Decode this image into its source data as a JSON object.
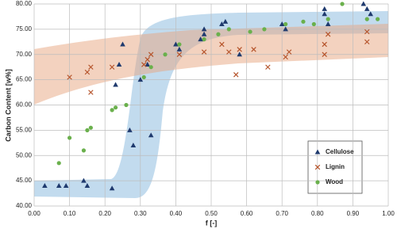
{
  "chart_data": {
    "type": "scatter",
    "x_label": "f [-]",
    "y_label": "Carbon Content [w%]",
    "xlim": [
      0,
      1
    ],
    "ylim": [
      40,
      80
    ],
    "xticks": [
      {
        "value": 0,
        "label": "0.00"
      },
      {
        "value": 0.1,
        "label": "0.10"
      },
      {
        "value": 0.2,
        "label": "0.20"
      },
      {
        "value": 0.3,
        "label": "0.30"
      },
      {
        "value": 0.4,
        "label": "0.40"
      },
      {
        "value": 0.5,
        "label": "0.50"
      },
      {
        "value": 0.6,
        "label": "0.60"
      },
      {
        "value": 0.7,
        "label": "0.70"
      },
      {
        "value": 0.8,
        "label": "0.80"
      },
      {
        "value": 0.9,
        "label": "0.90"
      },
      {
        "value": 1,
        "label": "1.00"
      }
    ],
    "yticks": [
      {
        "value": 40,
        "label": "40.00"
      },
      {
        "value": 45,
        "label": "45.00"
      },
      {
        "value": 50,
        "label": "50.00"
      },
      {
        "value": 55,
        "label": "55.00"
      },
      {
        "value": 60,
        "label": "60.00"
      },
      {
        "value": 65,
        "label": "65.00"
      },
      {
        "value": 70,
        "label": "70.00"
      },
      {
        "value": 75,
        "label": "75.00"
      },
      {
        "value": 80,
        "label": "80.00"
      }
    ],
    "grid": true,
    "legend": "lower right",
    "series": [
      {
        "name": "Cellulose",
        "color": "#1f3a6e",
        "marker": "triangle",
        "x": [
          0.03,
          0.07,
          0.09,
          0.14,
          0.15,
          0.22,
          0.23,
          0.24,
          0.25,
          0.27,
          0.28,
          0.3,
          0.32,
          0.33,
          0.4,
          0.41,
          0.47,
          0.48,
          0.48,
          0.53,
          0.54,
          0.58,
          0.7,
          0.71,
          0.82,
          0.82,
          0.83,
          0.93,
          0.94,
          0.95
        ],
        "values": [
          44,
          44,
          44,
          45,
          44,
          43.5,
          64,
          68,
          72,
          55,
          52,
          65,
          68,
          54,
          72,
          71,
          73,
          75,
          74,
          76,
          76.5,
          70,
          76,
          75,
          79,
          78,
          76,
          80,
          79,
          78
        ]
      },
      {
        "name": "Lignin",
        "color": "#b5532a",
        "marker": "x",
        "x": [
          0.1,
          0.15,
          0.16,
          0.16,
          0.22,
          0.31,
          0.32,
          0.33,
          0.41,
          0.48,
          0.53,
          0.55,
          0.57,
          0.58,
          0.62,
          0.66,
          0.71,
          0.72,
          0.82,
          0.82,
          0.83,
          0.94,
          0.94
        ],
        "values": [
          65.5,
          66.5,
          67.5,
          62.5,
          67.5,
          68,
          69,
          70,
          70,
          70.5,
          72,
          70.5,
          66,
          71,
          71,
          67.5,
          69.5,
          70.5,
          72,
          70,
          74,
          72.5,
          74.5
        ]
      },
      {
        "name": "Wood",
        "color": "#6ab04c",
        "marker": "circle",
        "x": [
          0.07,
          0.1,
          0.14,
          0.15,
          0.16,
          0.22,
          0.23,
          0.26,
          0.31,
          0.33,
          0.37,
          0.41,
          0.48,
          0.52,
          0.55,
          0.61,
          0.65,
          0.71,
          0.76,
          0.79,
          0.83,
          0.87,
          0.94,
          0.97
        ],
        "values": [
          48.5,
          53.5,
          51,
          55,
          55.5,
          59,
          59.5,
          60,
          65.5,
          67.5,
          70,
          72,
          73,
          74,
          75,
          74.5,
          75,
          76,
          76.5,
          76,
          77,
          80,
          77,
          77
        ]
      }
    ]
  }
}
